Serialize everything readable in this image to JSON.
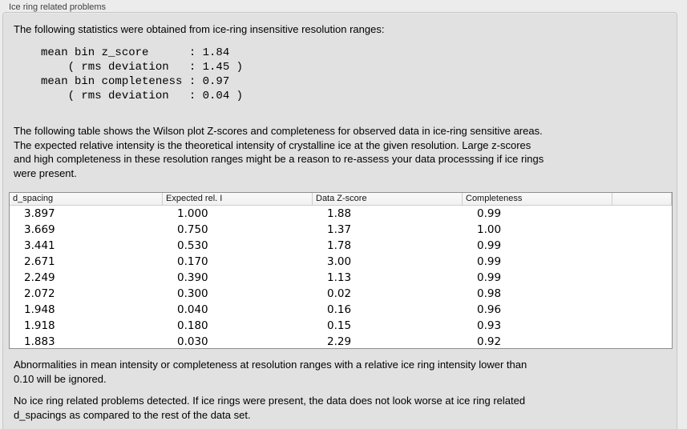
{
  "panel": {
    "title": "Ice ring related problems"
  },
  "intro": "The following statistics were obtained from ice-ring insensitive resolution ranges:",
  "stats_block": "mean bin z_score      : 1.84\n    ( rms deviation   : 1.45 )\nmean bin completeness : 0.97\n    ( rms deviation   : 0.04 )",
  "stats": {
    "mean_bin_z_score": "1.84",
    "z_score_rms_deviation": "1.45",
    "mean_bin_completeness": "0.97",
    "completeness_rms_deviation": "0.04"
  },
  "description": "The following table shows the Wilson plot Z-scores and completeness for observed data in ice-ring sensitive areas.\nThe expected relative intensity is the theoretical intensity of crystalline ice at the given resolution. Large z-scores\nand high completeness in these resolution ranges might be a reason to re-assess your data processsing if ice rings\nwere present.",
  "table": {
    "columns": [
      "d_spacing",
      "Expected rel. I",
      "Data Z-score",
      "Completeness"
    ],
    "rows": [
      [
        "3.897",
        "1.000",
        "1.88",
        "0.99"
      ],
      [
        "3.669",
        "0.750",
        "1.37",
        "1.00"
      ],
      [
        "3.441",
        "0.530",
        "1.78",
        "0.99"
      ],
      [
        "2.671",
        "0.170",
        "3.00",
        "0.99"
      ],
      [
        "2.249",
        "0.390",
        "1.13",
        "0.99"
      ],
      [
        "2.072",
        "0.300",
        "0.02",
        "0.98"
      ],
      [
        "1.948",
        "0.040",
        "0.16",
        "0.96"
      ],
      [
        "1.918",
        "0.180",
        "0.15",
        "0.93"
      ],
      [
        "1.883",
        "0.030",
        "2.29",
        "0.92"
      ]
    ]
  },
  "note_ignore": "Abnormalities in mean intensity or completeness at resolution ranges with a relative ice ring intensity lower than\n0.10 will be ignored.",
  "conclusion": "No ice ring related problems detected. If ice rings were present, the data does not look worse at ice ring related\nd_spacings as compared to the rest of the data set."
}
